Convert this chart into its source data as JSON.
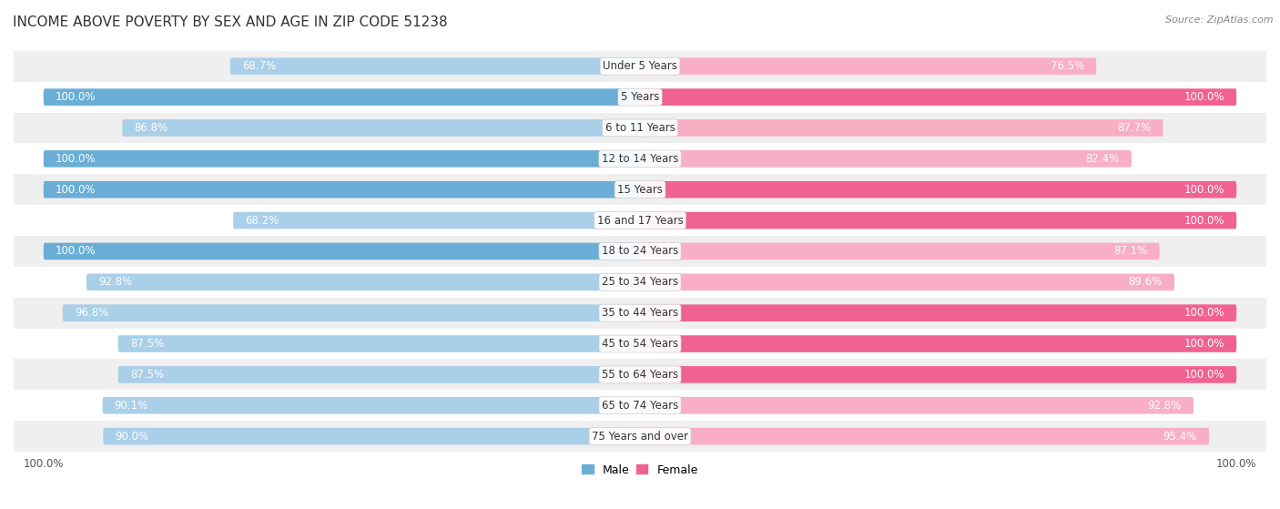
{
  "title": "INCOME ABOVE POVERTY BY SEX AND AGE IN ZIP CODE 51238",
  "source": "Source: ZipAtlas.com",
  "categories": [
    "Under 5 Years",
    "5 Years",
    "6 to 11 Years",
    "12 to 14 Years",
    "15 Years",
    "16 and 17 Years",
    "18 to 24 Years",
    "25 to 34 Years",
    "35 to 44 Years",
    "45 to 54 Years",
    "55 to 64 Years",
    "65 to 74 Years",
    "75 Years and over"
  ],
  "male_values": [
    68.7,
    100.0,
    86.8,
    100.0,
    100.0,
    68.2,
    100.0,
    92.8,
    96.8,
    87.5,
    87.5,
    90.1,
    90.0
  ],
  "female_values": [
    76.5,
    100.0,
    87.7,
    82.4,
    100.0,
    100.0,
    87.1,
    89.6,
    100.0,
    100.0,
    100.0,
    92.8,
    95.4
  ],
  "male_color_full": "#6aaed6",
  "male_color_partial": "#aacfe8",
  "female_color_full": "#f06292",
  "female_color_partial": "#f8afc6",
  "male_label": "Male",
  "female_label": "Female",
  "background_color": "#ffffff",
  "row_bg_alt": "#efefef",
  "title_fontsize": 11,
  "value_fontsize": 8.5,
  "category_fontsize": 8.5,
  "legend_fontsize": 9,
  "source_fontsize": 8
}
